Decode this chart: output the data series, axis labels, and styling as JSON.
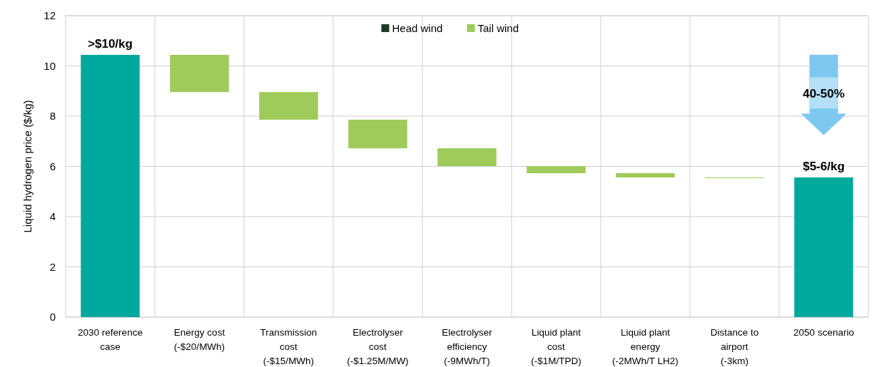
{
  "chart_data": {
    "type": "bar",
    "ylabel": "Liquid hydrogen price ($/kg)",
    "categories": [
      "2030 reference\ncase",
      "Energy cost\n(-$20/MWh)",
      "Transmission\ncost\n(-$15/MWh)",
      "Electrolyser\ncost\n(-$1.25M/MW)",
      "Electrolyser\nefficiency\n(-9MWh/T)",
      "Liquid plant\ncost\n(-$1M/TPD)",
      "Liquid plant\nenergy\n(-2MWh/T LH2)",
      "Distance to\nairport\n(-3km)",
      "2050 scenario"
    ],
    "series": [
      {
        "color": "#00a99d",
        "values": [
          10.44,
          null,
          null,
          null,
          null,
          null,
          null,
          null,
          5.56
        ]
      },
      {
        "name": "Head wind",
        "color": "#1b3b26",
        "values": [
          null,
          null,
          null,
          null,
          null,
          null,
          null,
          null,
          null
        ]
      },
      {
        "name": "Tail wind",
        "color": "#9ecb5a",
        "values": [
          null,
          1.48,
          1.1,
          1.14,
          0.71,
          0.28,
          0.17,
          0.02,
          null
        ],
        "base": [
          null,
          8.96,
          7.86,
          6.72,
          6.01,
          5.73,
          5.56,
          5.54,
          null
        ]
      }
    ],
    "ylim": [
      0,
      12
    ],
    "yticks": [
      0,
      2,
      4,
      6,
      8,
      10,
      12
    ],
    "grid": true,
    "legend": "top",
    "annotations": [
      {
        "text": ">$10/kg",
        "x": "2030 reference\ncase",
        "y": 10.44
      },
      {
        "text": "$5-6/kg",
        "x": "2050 scenario",
        "y": 5.56
      },
      "40-50%"
    ]
  }
}
